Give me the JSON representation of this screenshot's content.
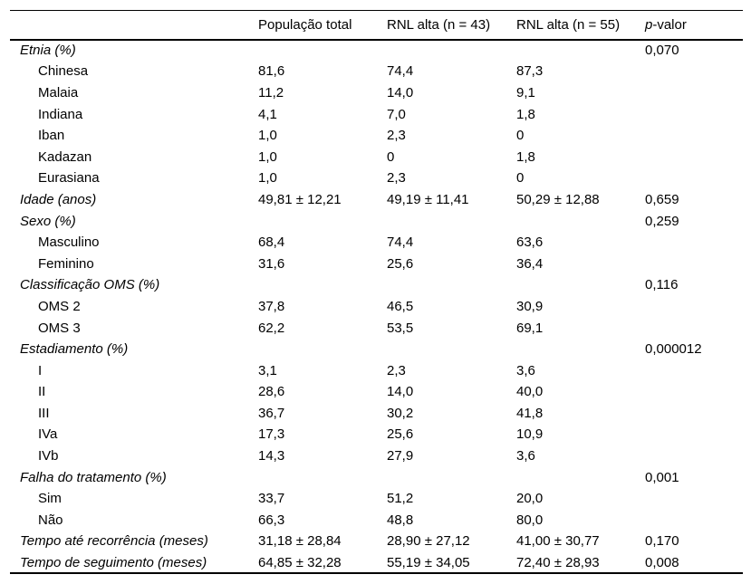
{
  "page": {
    "background": "#ffffff",
    "text_color": "#000000",
    "rule_color": "#000000"
  },
  "table": {
    "columns": [
      "",
      "População total",
      "RNL alta (n = 43)",
      "RNL alta (n = 55)",
      "p-valor"
    ],
    "p_header": {
      "italic": "p",
      "rest": "-valor"
    },
    "rows": [
      {
        "label": "Etnia (%)",
        "indent": false,
        "total": "",
        "alta43": "",
        "alta55": "",
        "p": "0,070"
      },
      {
        "label": "Chinesa",
        "indent": true,
        "total": "81,6",
        "alta43": "74,4",
        "alta55": "87,3",
        "p": ""
      },
      {
        "label": "Malaia",
        "indent": true,
        "total": "11,2",
        "alta43": "14,0",
        "alta55": "9,1",
        "p": ""
      },
      {
        "label": "Indiana",
        "indent": true,
        "total": "4,1",
        "alta43": "7,0",
        "alta55": "1,8",
        "p": ""
      },
      {
        "label": "Iban",
        "indent": true,
        "total": "1,0",
        "alta43": "2,3",
        "alta55": "0",
        "p": ""
      },
      {
        "label": "Kadazan",
        "indent": true,
        "total": "1,0",
        "alta43": "0",
        "alta55": "1,8",
        "p": ""
      },
      {
        "label": "Eurasiana",
        "indent": true,
        "total": "1,0",
        "alta43": "2,3",
        "alta55": "0",
        "p": ""
      },
      {
        "label": "Idade (anos)",
        "indent": false,
        "total": "49,81 ± 12,21",
        "alta43": "49,19 ± 11,41",
        "alta55": "50,29 ± 12,88",
        "p": "0,659"
      },
      {
        "label": "Sexo (%)",
        "indent": false,
        "total": "",
        "alta43": "",
        "alta55": "",
        "p": "0,259"
      },
      {
        "label": "Masculino",
        "indent": true,
        "total": "68,4",
        "alta43": "74,4",
        "alta55": "63,6",
        "p": ""
      },
      {
        "label": "Feminino",
        "indent": true,
        "total": "31,6",
        "alta43": "25,6",
        "alta55": "36,4",
        "p": ""
      },
      {
        "label": "Classificação OMS (%)",
        "indent": false,
        "total": "",
        "alta43": "",
        "alta55": "",
        "p": "0,116"
      },
      {
        "label": "OMS 2",
        "indent": true,
        "total": "37,8",
        "alta43": "46,5",
        "alta55": "30,9",
        "p": ""
      },
      {
        "label": "OMS 3",
        "indent": true,
        "total": "62,2",
        "alta43": "53,5",
        "alta55": "69,1",
        "p": ""
      },
      {
        "label": "Estadiamento (%)",
        "indent": false,
        "total": "",
        "alta43": "",
        "alta55": "",
        "p": "0,000012"
      },
      {
        "label": "I",
        "indent": true,
        "total": "3,1",
        "alta43": "2,3",
        "alta55": "3,6",
        "p": ""
      },
      {
        "label": "II",
        "indent": true,
        "total": "28,6",
        "alta43": "14,0",
        "alta55": "40,0",
        "p": ""
      },
      {
        "label": "III",
        "indent": true,
        "total": "36,7",
        "alta43": "30,2",
        "alta55": "41,8",
        "p": ""
      },
      {
        "label": "IVa",
        "indent": true,
        "total": "17,3",
        "alta43": "25,6",
        "alta55": "10,9",
        "p": ""
      },
      {
        "label": "IVb",
        "indent": true,
        "total": "14,3",
        "alta43": "27,9",
        "alta55": "3,6",
        "p": ""
      },
      {
        "label": "Falha do tratamento (%)",
        "indent": false,
        "total": "",
        "alta43": "",
        "alta55": "",
        "p": "0,001"
      },
      {
        "label": "Sim",
        "indent": true,
        "total": "33,7",
        "alta43": "51,2",
        "alta55": "20,0",
        "p": ""
      },
      {
        "label": "Não",
        "indent": true,
        "total": "66,3",
        "alta43": "48,8",
        "alta55": "80,0",
        "p": ""
      },
      {
        "label": "Tempo até recorrência (meses)",
        "indent": false,
        "total": "31,18 ± 28,84",
        "alta43": "28,90 ± 27,12",
        "alta55": "41,00 ± 30,77",
        "p": "0,170"
      },
      {
        "label": "Tempo de seguimento (meses)",
        "indent": false,
        "total": "64,85 ± 32,28",
        "alta43": "55,19 ± 34,05",
        "alta55": "72,40 ± 28,93",
        "p": "0,008"
      }
    ]
  }
}
